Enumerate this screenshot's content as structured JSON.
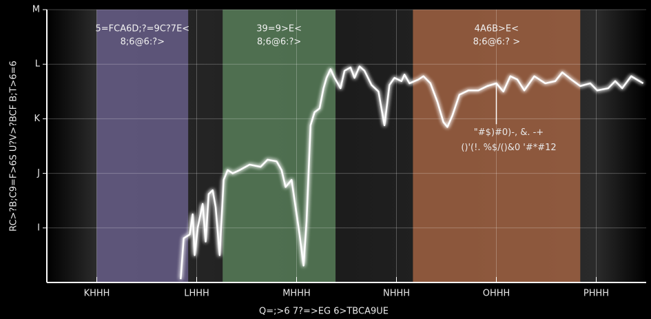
{
  "chart_data": {
    "type": "line",
    "xlabel": "Q=;>6 7?=>EG 6>TBCA9UE",
    "ylabel": "RC>?B;C9=F>6S U?V>?BCF B;T>6=6",
    "xlim": [
      2500,
      8500
    ],
    "ylim": [
      0,
      5
    ],
    "xticks": [
      {
        "value": 3000,
        "label": "KHHH"
      },
      {
        "value": 4000,
        "label": "LHHH"
      },
      {
        "value": 5000,
        "label": "MHHH"
      },
      {
        "value": 6000,
        "label": "NHHH"
      },
      {
        "value": 7000,
        "label": "OHHH"
      },
      {
        "value": 8000,
        "label": "PHHH"
      }
    ],
    "yticks": [
      {
        "value": 1,
        "label": "I"
      },
      {
        "value": 2,
        "label": "J"
      },
      {
        "value": 3,
        "label": "K"
      },
      {
        "value": 4,
        "label": "L"
      },
      {
        "value": 5,
        "label": "M"
      }
    ],
    "grid": true,
    "bands": [
      {
        "start": 3000,
        "end": 3915,
        "color": "#6f6494",
        "label": [
          "5=FCA6D;?=9C?7E<",
          "8;6@6:?>"
        ]
      },
      {
        "start": 4260,
        "end": 5390,
        "color": "#5f8a60",
        "label": [
          "39=9>E<",
          "8;6@6:?>"
        ]
      },
      {
        "start": 6165,
        "end": 7840,
        "color": "#b06a46",
        "label": [
          "4A6B>E<",
          "8;6@6:?  >"
        ]
      }
    ],
    "annotation": {
      "x": 7000,
      "y": 3.65,
      "y_end": 2.9,
      "text": [
        "\"#$)#0)-, &. -+",
        "()'(!.   %$/()&0 '#*#12"
      ]
    },
    "series": [
      {
        "color": "#ffffff",
        "x": [
          3840,
          3870,
          3930,
          3960,
          3980,
          4010,
          4060,
          4090,
          4120,
          4160,
          4190,
          4230,
          4270,
          4310,
          4360,
          4430,
          4530,
          4640,
          4710,
          4800,
          4850,
          4890,
          4950,
          4990,
          5030,
          5070,
          5100,
          5140,
          5180,
          5230,
          5270,
          5300,
          5340,
          5380,
          5440,
          5480,
          5540,
          5580,
          5630,
          5680,
          5750,
          5820,
          5880,
          5930,
          5980,
          6050,
          6080,
          6130,
          6220,
          6270,
          6340,
          6410,
          6470,
          6510,
          6560,
          6630,
          6720,
          6820,
          6910,
          7000,
          7070,
          7140,
          7210,
          7280,
          7380,
          7490,
          7590,
          7660,
          7750,
          7840,
          7940,
          8010,
          8120,
          8190,
          8260,
          8350,
          8470
        ],
        "values": [
          0.06,
          0.81,
          0.88,
          1.25,
          0.5,
          1.0,
          1.44,
          0.75,
          1.62,
          1.69,
          1.38,
          0.5,
          1.88,
          2.06,
          2.0,
          2.06,
          2.16,
          2.12,
          2.25,
          2.22,
          2.06,
          1.75,
          1.88,
          1.38,
          0.88,
          0.31,
          1.12,
          2.88,
          3.12,
          3.19,
          3.56,
          3.75,
          3.91,
          3.75,
          3.56,
          3.88,
          3.94,
          3.75,
          3.96,
          3.88,
          3.62,
          3.5,
          2.88,
          3.62,
          3.75,
          3.69,
          3.81,
          3.65,
          3.72,
          3.78,
          3.65,
          3.31,
          2.94,
          2.85,
          3.06,
          3.44,
          3.52,
          3.52,
          3.6,
          3.65,
          3.5,
          3.78,
          3.72,
          3.52,
          3.78,
          3.65,
          3.69,
          3.85,
          3.72,
          3.6,
          3.65,
          3.52,
          3.56,
          3.69,
          3.56,
          3.78,
          3.65
        ]
      }
    ]
  }
}
